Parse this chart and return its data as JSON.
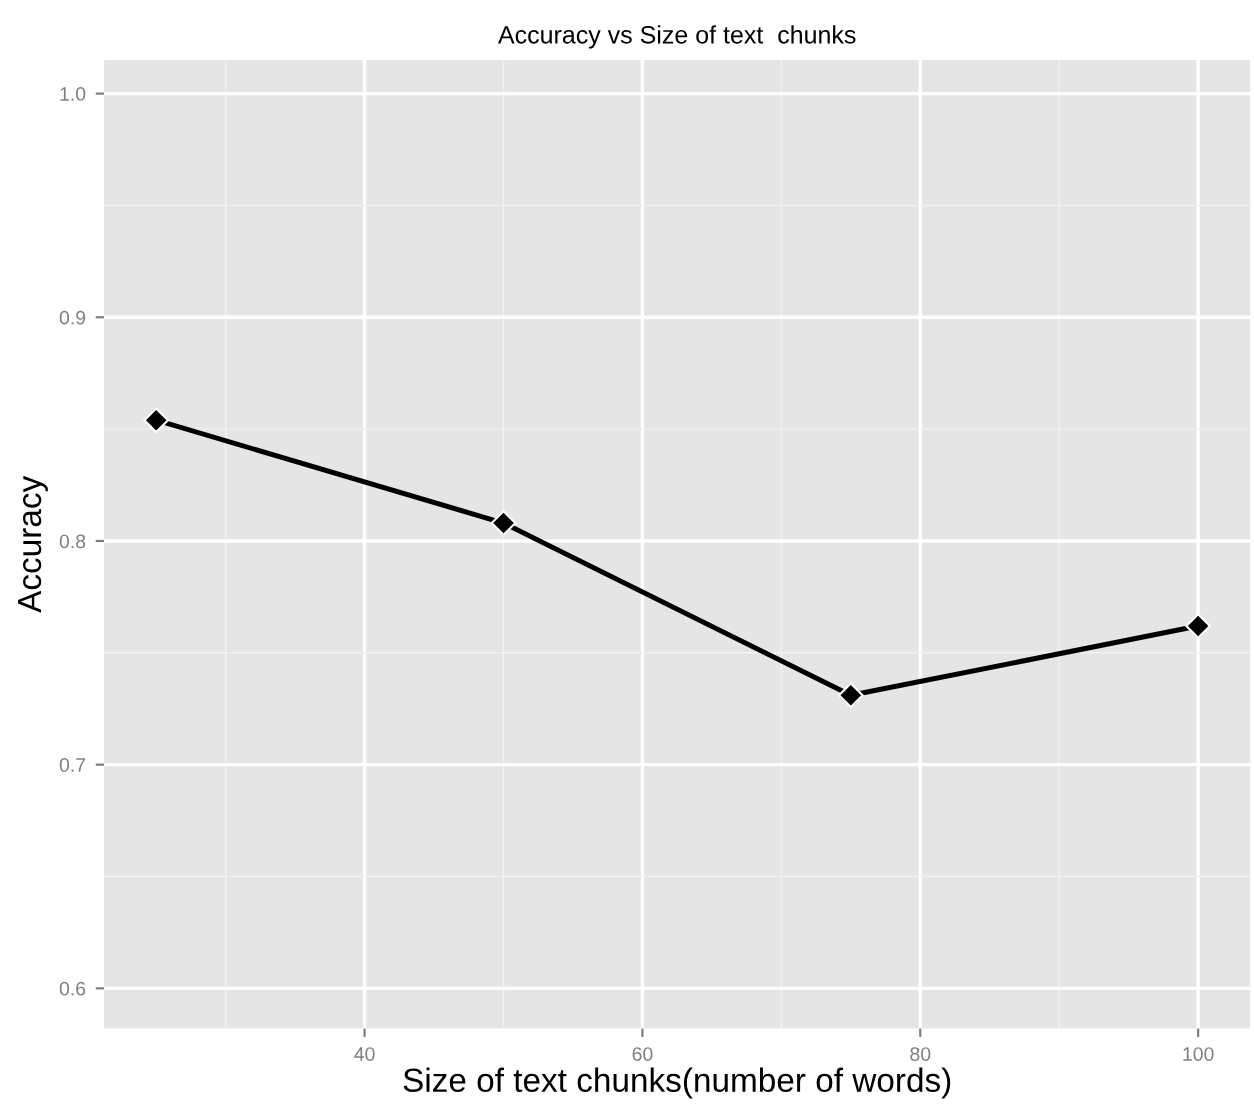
{
  "chart_data": {
    "type": "line",
    "title": "Accuracy vs Size of text  chunks",
    "xlabel": "Size of text chunks(number of words)",
    "ylabel": "Accuracy",
    "x": [
      25,
      50,
      75,
      100
    ],
    "series": [
      {
        "color": "#000000",
        "values": [
          0.854,
          0.808,
          0.731,
          0.762
        ]
      }
    ],
    "xlim": [
      21.25,
      103.75
    ],
    "xticks": [
      40,
      60,
      80,
      100
    ],
    "ylim": [
      0.582,
      1.015
    ],
    "yticks": [
      {
        "value": 0.6,
        "label": "0.6"
      },
      {
        "value": 0.7,
        "label": "0.7"
      },
      {
        "value": 0.8,
        "label": "0.8"
      },
      {
        "value": 0.9,
        "label": "0.9"
      },
      {
        "value": 1.0,
        "label": "1.0"
      }
    ],
    "grid": true,
    "marker": "diamond",
    "line_style": "solid"
  }
}
